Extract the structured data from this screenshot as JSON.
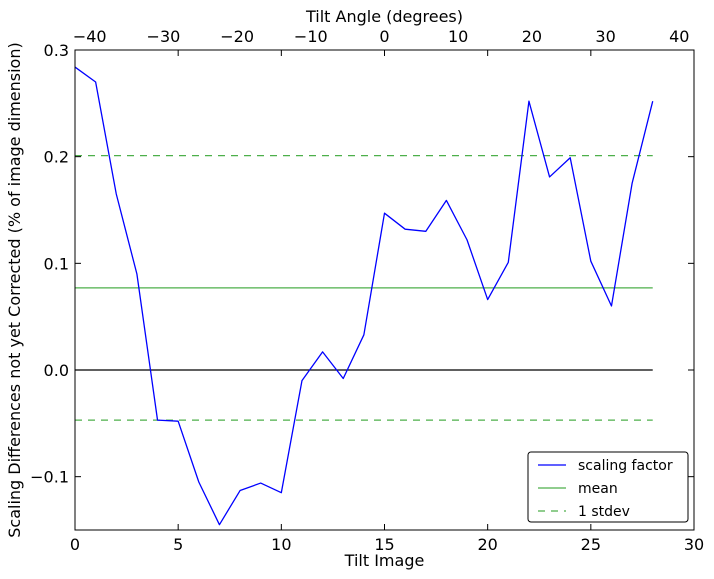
{
  "chart_data": {
    "type": "line",
    "xlabel": "Tilt Image",
    "ylabel": "Scaling Differences not yet Corrected (% of image dimension)",
    "x2label": "Tilt Angle (degrees)",
    "xlim": [
      0,
      30
    ],
    "ylim": [
      -0.15,
      0.3
    ],
    "x2lim": [
      -42,
      42
    ],
    "x_ticks": [
      0,
      5,
      10,
      15,
      20,
      25,
      30
    ],
    "x_tick_labels": [
      "0",
      "5",
      "10",
      "15",
      "20",
      "25",
      "30"
    ],
    "y_ticks": [
      -0.1,
      0.0,
      0.1,
      0.2,
      0.3
    ],
    "y_tick_labels": [
      "−0.1",
      "0.0",
      "0.1",
      "0.2",
      "0.3"
    ],
    "x2_ticks": [
      -40,
      -30,
      -20,
      -10,
      0,
      10,
      20,
      30,
      40
    ],
    "x2_tick_labels": [
      "−40",
      "−30",
      "−20",
      "−10",
      "0",
      "10",
      "20",
      "30",
      "40"
    ],
    "grid": false,
    "legend_position": "lower-right",
    "series": [
      {
        "name": "scaling factor",
        "style": "solid",
        "color": "#0000ff",
        "x": [
          0,
          1,
          2,
          3,
          4,
          5,
          6,
          7,
          8,
          9,
          10,
          11,
          12,
          13,
          14,
          15,
          16,
          17,
          18,
          19,
          20,
          21,
          22,
          23,
          24,
          25,
          26,
          27,
          28
        ],
        "values": [
          0.284,
          0.27,
          0.165,
          0.09,
          -0.047,
          -0.048,
          -0.105,
          -0.145,
          -0.113,
          -0.106,
          -0.115,
          -0.01,
          0.017,
          -0.008,
          0.033,
          0.147,
          0.132,
          0.13,
          0.159,
          0.122,
          0.066,
          0.101,
          0.252,
          0.181,
          0.199,
          0.102,
          0.06,
          0.175,
          0.252
        ]
      },
      {
        "name": "mean",
        "style": "solid",
        "color": "#4daf4a",
        "x": [
          0,
          28
        ],
        "values": [
          0.077,
          0.077
        ]
      },
      {
        "name": "1 stdev",
        "style": "dashed",
        "color": "#4daf4a",
        "x": [
          0,
          28
        ],
        "values": [
          0.201,
          0.201
        ]
      },
      {
        "name": "1 stdev",
        "style": "dashed",
        "color": "#4daf4a",
        "x": [
          0,
          28
        ],
        "values": [
          -0.047,
          -0.047
        ]
      },
      {
        "style": "solid",
        "color": "#000000",
        "x": [
          0,
          28
        ],
        "values": [
          0.0,
          0.0
        ]
      }
    ],
    "legend": [
      {
        "label": "scaling factor",
        "color": "#0000ff",
        "style": "solid"
      },
      {
        "label": "mean",
        "color": "#4daf4a",
        "style": "solid"
      },
      {
        "label": "1 stdev",
        "color": "#4daf4a",
        "style": "dashed"
      }
    ]
  }
}
